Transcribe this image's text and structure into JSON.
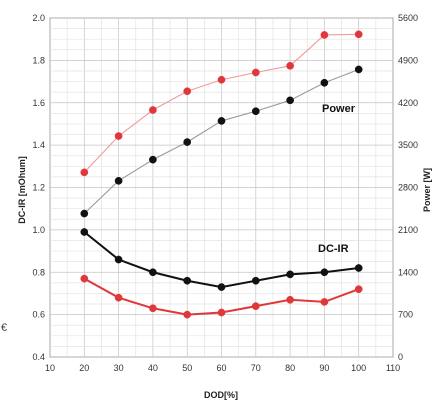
{
  "chart_data": {
    "type": "line",
    "title": "",
    "xlabel": "DOD[%]",
    "ylabel_left": "DC-IR [mOhum]",
    "ylabel_right": "Power [W]",
    "xlim": [
      10,
      110
    ],
    "ylim_left": [
      0.4,
      2.0
    ],
    "ylim_right": [
      0,
      5600
    ],
    "x_ticks": [
      "10",
      "20",
      "30",
      "40",
      "50",
      "60",
      "70",
      "80",
      "90",
      "100",
      "110"
    ],
    "y_ticks_left": [
      "0.4",
      "0.6",
      "0.8",
      "1.0",
      "1.2",
      "1.4",
      "1.6",
      "1.8",
      "2.0"
    ],
    "y_ticks_right": [
      "0",
      "700",
      "1400",
      "2100",
      "2800",
      "3500",
      "4200",
      "4900",
      "5600"
    ],
    "grid": true,
    "annotations": [
      {
        "text": "Power",
        "x": 92,
        "y_axis": "left",
        "y": 1.62
      },
      {
        "text": "DC-IR",
        "x": 90,
        "y_axis": "left",
        "y": 0.9
      }
    ],
    "x": [
      20,
      30,
      40,
      50,
      60,
      70,
      80,
      90,
      100
    ],
    "series": [
      {
        "axis": "right",
        "color": "#e0383a",
        "line_color": "#f29a9a",
        "values": [
          3050,
          3650,
          4080,
          4390,
          4580,
          4700,
          4810,
          5320,
          5330
        ]
      },
      {
        "axis": "right",
        "color": "#111111",
        "line_color": "#9a9a9a",
        "values": [
          2370,
          2910,
          3260,
          3550,
          3900,
          4060,
          4240,
          4530,
          4750
        ]
      },
      {
        "axis": "left",
        "color": "#111111",
        "line_color": "#111111",
        "values": [
          0.99,
          0.86,
          0.8,
          0.76,
          0.73,
          0.76,
          0.79,
          0.8,
          0.82
        ]
      },
      {
        "axis": "left",
        "color": "#e0383a",
        "line_color": "#e0383a",
        "values": [
          0.77,
          0.68,
          0.63,
          0.6,
          0.61,
          0.64,
          0.67,
          0.66,
          0.72
        ]
      }
    ]
  },
  "edge_glyph": "€"
}
